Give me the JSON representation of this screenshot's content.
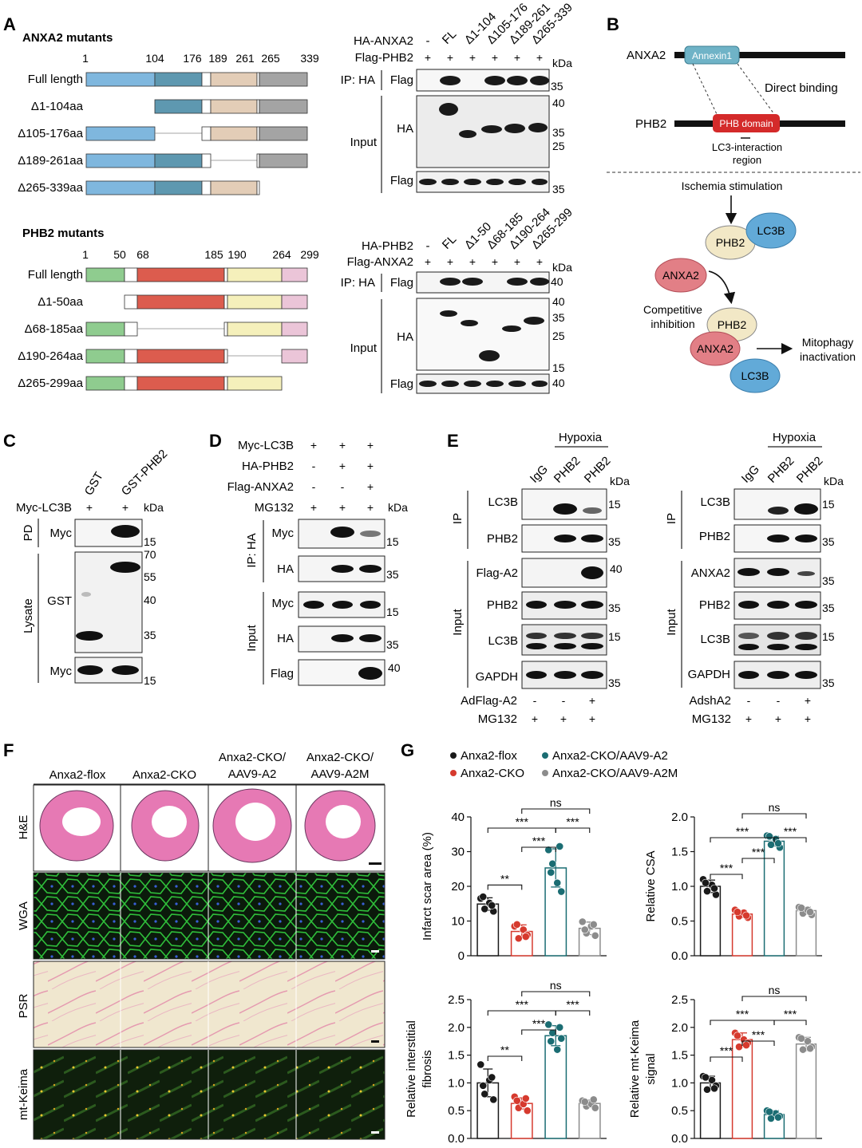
{
  "panels": {
    "A": "A",
    "B": "B",
    "C": "C",
    "D": "D",
    "E": "E",
    "F": "F",
    "G": "G"
  },
  "colors": {
    "blue": "#7fb7de",
    "teal": "#5e98b0",
    "tan": "#e3cdb7",
    "grey": "#a4a4a4",
    "green": "#8fcc8f",
    "red": "#dc5c4e",
    "yellow": "#f5f0bb",
    "pink": "#ebc5d8",
    "black": "#1a1a1a",
    "anxa2_red": "#d63a2e",
    "aav_teal": "#1b6d73",
    "a2m_grey": "#8c8c8c"
  },
  "A": {
    "anxa2_title": "ANXA2 mutants",
    "anxa2_ticks": [
      "1",
      "104",
      "176",
      "189",
      "261",
      "265",
      "339"
    ],
    "anxa2_rows": [
      "Full length",
      "Δ1-104aa",
      "Δ105-176aa",
      "Δ189-261aa",
      "Δ265-339aa"
    ],
    "phb2_title": "PHB2 mutants",
    "phb2_ticks": [
      "1",
      "50",
      "68",
      "185",
      "190",
      "264",
      "299"
    ],
    "phb2_rows": [
      "Full length",
      "Δ1-50aa",
      "Δ68-185aa",
      "Δ190-264aa",
      "Δ265-299aa"
    ],
    "blot1": {
      "row1_label": "HA-ANXA2",
      "row2_label": "Flag-PHB2",
      "lanes": [
        "-",
        "FL",
        "Δ1-104",
        "Δ105-176",
        "Δ189-261",
        "Δ265-339"
      ],
      "plus": "+",
      "kda": "kDa",
      "ip": "IP: HA",
      "ip_flag": "Flag",
      "input": "Input",
      "ha": "HA",
      "flag": "Flag",
      "markers": [
        "35",
        "40",
        "35",
        "25",
        "35"
      ]
    },
    "blot2": {
      "row1_label": "HA-PHB2",
      "row2_label": "Flag-ANXA2",
      "lanes": [
        "-",
        "FL",
        "Δ1-50",
        "Δ68-185",
        "Δ190-264",
        "Δ265-299"
      ],
      "plus": "+",
      "kda": "kDa",
      "ip": "IP: HA",
      "ip_flag": "Flag",
      "input": "Input",
      "ha": "HA",
      "flag": "Flag",
      "markers": [
        "40",
        "40",
        "35",
        "25",
        "15",
        "40"
      ]
    }
  },
  "B": {
    "anxa2": "ANXA2",
    "annexin": "Annexin1",
    "direct": "Direct binding",
    "phb2": "PHB2",
    "phb_domain": "PHB domain",
    "lc3_region1": "LC3-interaction",
    "lc3_region2": "region",
    "ischemia": "Ischemia stimulation",
    "lc3b": "LC3B",
    "phb2_node": "PHB2",
    "anxa2_node": "ANXA2",
    "competitive1": "Competitive",
    "competitive2": "inhibition",
    "mitophagy1": "Mitophagy",
    "mitophagy2": "inactivation"
  },
  "C": {
    "lanes": [
      "GST",
      "GST-PHB2"
    ],
    "myc_lc3b": "Myc-LC3B",
    "plus": "+",
    "kda": "kDa",
    "pd": "PD",
    "lysate": "Lysate",
    "myc": "Myc",
    "gst": "GST",
    "markers": [
      "15",
      "70",
      "55",
      "40",
      "35",
      "15"
    ]
  },
  "D": {
    "rows": [
      "Myc-LC3B",
      "HA-PHB2",
      "Flag-ANXA2",
      "MG132"
    ],
    "signs": [
      [
        "+",
        "+",
        "+"
      ],
      [
        "-",
        "+",
        "+"
      ],
      [
        "-",
        "-",
        "+"
      ],
      [
        "+",
        "+",
        "+"
      ]
    ],
    "kda": "kDa",
    "ip": "IP: HA",
    "input": "Input",
    "bands": [
      "Myc",
      "HA",
      "Myc",
      "HA",
      "Flag"
    ],
    "markers": [
      "15",
      "35",
      "15",
      "35",
      "40"
    ]
  },
  "E": {
    "hypoxia": "Hypoxia",
    "lanes": [
      "IgG",
      "PHB2",
      "PHB2"
    ],
    "kda": "kDa",
    "ip": "IP",
    "input": "Input",
    "left_bands": [
      "LC3B",
      "PHB2",
      "Flag-A2",
      "PHB2",
      "LC3B",
      "GAPDH"
    ],
    "left_markers": [
      "15",
      "35",
      "40",
      "35",
      "15",
      "35"
    ],
    "right_bands": [
      "LC3B",
      "PHB2",
      "ANXA2",
      "PHB2",
      "LC3B",
      "GAPDH"
    ],
    "right_markers": [
      "15",
      "35",
      "35",
      "35",
      "15",
      "35"
    ],
    "left_treat": [
      "AdFlag-A2",
      "MG132"
    ],
    "left_signs": [
      [
        "-",
        "-",
        "+"
      ],
      [
        "+",
        "+",
        "+"
      ]
    ],
    "right_treat": [
      "AdshA2",
      "MG132"
    ],
    "right_signs": [
      [
        "-",
        "-",
        "+"
      ],
      [
        "+",
        "+",
        "+"
      ]
    ]
  },
  "F": {
    "columns": [
      "Anxa2-flox",
      "Anxa2-CKO",
      "Anxa2-CKO/\nAAV9-A2",
      "Anxa2-CKO/\nAAV9-A2M"
    ],
    "col1": "Anxa2-flox",
    "col2": "Anxa2-CKO",
    "col3a": "Anxa2-CKO/",
    "col3b": "AAV9-A2",
    "col4a": "Anxa2-CKO/",
    "col4b": "AAV9-A2M",
    "rows": [
      "H&E",
      "WGA",
      "PSR",
      "mt-Keima"
    ]
  },
  "chart_data": [
    {
      "type": "bar",
      "ylabel": "Infarct scar area (%)",
      "ylim": [
        0,
        40
      ],
      "yticks": [
        "0",
        "10",
        "20",
        "30",
        "40"
      ],
      "categories": [
        "Anxa2-flox",
        "Anxa2-CKO",
        "Anxa2-CKO/AAV9-A2",
        "Anxa2-CKO/AAV9-A2M"
      ],
      "values": [
        14.9,
        7.0,
        25.3,
        7.9
      ],
      "errors": [
        1.8,
        1.9,
        5.5,
        1.8
      ],
      "points": [
        [
          16.5,
          13.5,
          15.2,
          12.8,
          17.0,
          14.5
        ],
        [
          8.5,
          5.0,
          7.5,
          6.0,
          9.0,
          5.5
        ],
        [
          30.5,
          26.5,
          21.0,
          18.5,
          24.0,
          31.5
        ],
        [
          9.8,
          6.5,
          8.5,
          5.8,
          7.5,
          9.0
        ]
      ],
      "sig": [
        "**",
        "***",
        "***",
        "***",
        "ns"
      ]
    },
    {
      "type": "bar",
      "ylabel": "Relative CSA",
      "ylim": [
        0,
        2.0
      ],
      "yticks": [
        "0.0",
        "0.5",
        "1.0",
        "1.5",
        "2.0"
      ],
      "categories": [
        "Anxa2-flox",
        "Anxa2-CKO",
        "Anxa2-CKO/AAV9-A2",
        "Anxa2-CKO/AAV9-A2M"
      ],
      "values": [
        1.0,
        0.6,
        1.65,
        0.65
      ],
      "errors": [
        0.09,
        0.05,
        0.07,
        0.05
      ],
      "points": [
        [
          1.1,
          0.93,
          1.02,
          0.88,
          1.05,
          0.97
        ],
        [
          0.66,
          0.57,
          0.62,
          0.55,
          0.63,
          0.58
        ],
        [
          1.73,
          1.6,
          1.68,
          1.56,
          1.72,
          1.62
        ],
        [
          0.7,
          0.61,
          0.66,
          0.59,
          0.69,
          0.63
        ]
      ],
      "sig": [
        "***",
        "***",
        "***",
        "***",
        "ns"
      ]
    },
    {
      "type": "bar",
      "ylabel": "Relative interstitial fibrosis",
      "ylim": [
        0,
        2.5
      ],
      "yticks": [
        "0.0",
        "0.5",
        "1.0",
        "1.5",
        "2.0",
        "2.5"
      ],
      "categories": [
        "Anxa2-flox",
        "Anxa2-CKO",
        "Anxa2-CKO/AAV9-A2",
        "Anxa2-CKO/AAV9-A2M"
      ],
      "values": [
        1.0,
        0.63,
        1.85,
        0.63
      ],
      "errors": [
        0.25,
        0.1,
        0.18,
        0.06
      ],
      "points": [
        [
          1.33,
          0.8,
          1.05,
          0.7,
          0.95,
          1.1
        ],
        [
          0.75,
          0.55,
          0.62,
          0.5,
          0.68,
          0.72
        ],
        [
          2.05,
          1.9,
          1.6,
          1.8,
          1.75,
          2.0
        ],
        [
          0.68,
          0.58,
          0.62,
          0.55,
          0.66,
          0.7
        ]
      ],
      "sig": [
        "**",
        "***",
        "***",
        "***",
        "ns"
      ]
    },
    {
      "type": "bar",
      "ylabel": "Relative mt-Keima signal",
      "ylim": [
        0,
        2.5
      ],
      "yticks": [
        "0.0",
        "0.5",
        "1.0",
        "1.5",
        "2.0",
        "2.5"
      ],
      "categories": [
        "Anxa2-flox",
        "Anxa2-CKO",
        "Anxa2-CKO/AAV9-A2",
        "Anxa2-CKO/AAV9-A2M"
      ],
      "values": [
        1.0,
        1.78,
        0.43,
        1.7
      ],
      "errors": [
        0.12,
        0.12,
        0.07,
        0.12
      ],
      "points": [
        [
          1.12,
          0.88,
          1.05,
          0.95,
          1.1,
          0.9
        ],
        [
          1.9,
          1.65,
          1.78,
          1.72,
          1.85,
          1.68
        ],
        [
          0.5,
          0.36,
          0.45,
          0.4,
          0.48,
          0.38
        ],
        [
          1.82,
          1.6,
          1.75,
          1.65,
          1.8,
          1.62
        ]
      ],
      "sig": [
        "***",
        "***",
        "***",
        "***",
        "ns"
      ]
    }
  ],
  "G": {
    "legend": [
      "Anxa2-flox",
      "Anxa2-CKO",
      "Anxa2-CKO/AAV9-A2",
      "Anxa2-CKO/AAV9-A2M"
    ]
  }
}
